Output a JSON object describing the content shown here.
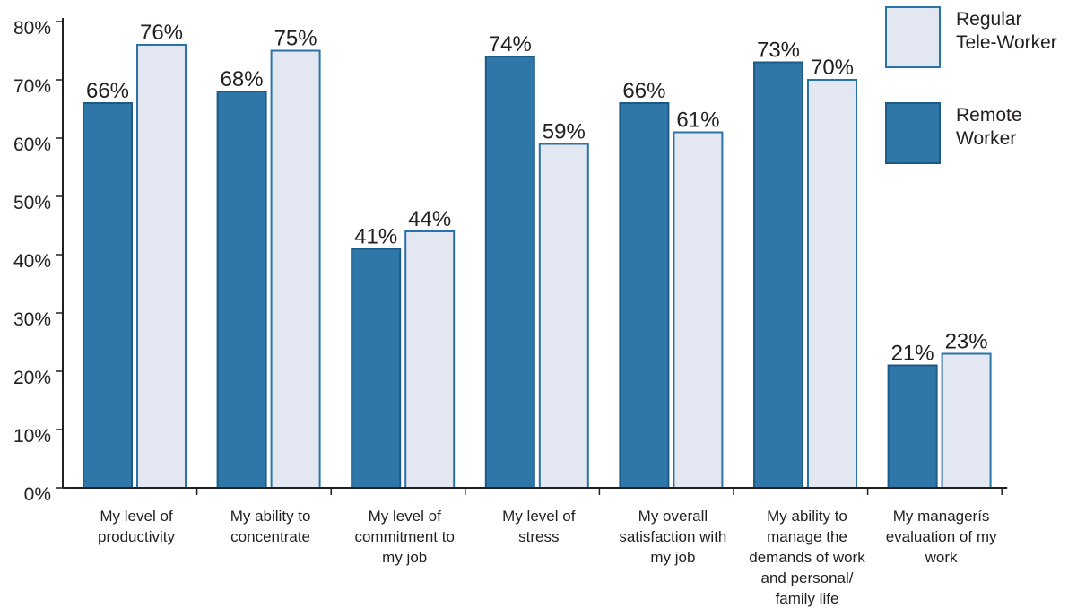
{
  "chart_data": {
    "type": "bar",
    "categories": [
      "My level of\nproductivity",
      "My ability to\nconcentrate",
      "My level of\ncommitment to\nmy job",
      "My level of\nstress",
      "My overall\nsatisfaction with\nmy job",
      "My ability to\nmanage the\ndemands of work\nand personal/\nfamily life",
      "My managerís\nevaluation of my\nwork"
    ],
    "series": [
      {
        "name": "Remote Worker",
        "values": [
          66,
          68,
          41,
          74,
          66,
          73,
          21
        ],
        "color": "#2e77a8",
        "border": "#1d5b87"
      },
      {
        "name": "Regular Tele-Worker",
        "values": [
          76,
          75,
          44,
          59,
          61,
          70,
          23
        ],
        "color": "#e3e7f1",
        "border": "#2a73a6"
      }
    ],
    "unit": "%",
    "yticks": [
      0,
      10,
      20,
      30,
      40,
      50,
      60,
      70,
      80
    ],
    "ylim": [
      0,
      80
    ],
    "grid": false,
    "data_labels": true,
    "legend": "top-right"
  }
}
